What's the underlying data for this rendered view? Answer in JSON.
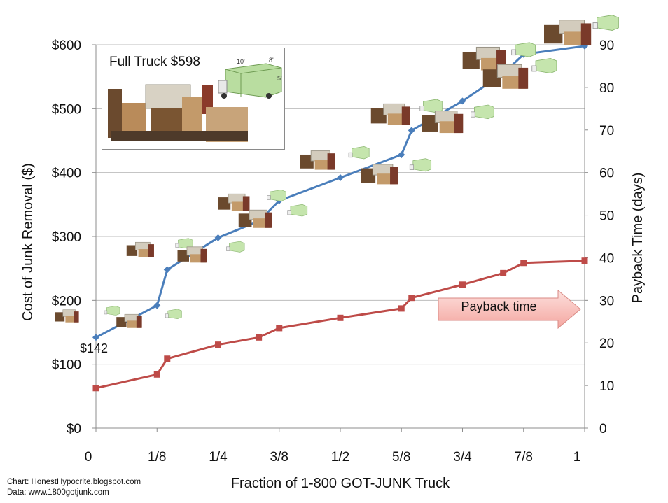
{
  "chart_data": {
    "type": "line",
    "x_tick_labels": [
      "0",
      "1/8",
      "1/4",
      "3/8",
      "1/2",
      "5/8",
      "3/4",
      "7/8",
      "1"
    ],
    "xlim": [
      0,
      1
    ],
    "xlabel": "Fraction of 1-800 GOT-JUNK Truck",
    "ylabel_left": "Cost of Junk Removal ($)",
    "ylabel_right": "Payback Time (days)",
    "ylim_left": [
      0,
      600
    ],
    "ylim_right": [
      0,
      90
    ],
    "y_tick_labels_left": [
      "$0",
      "$100",
      "$200",
      "$300",
      "$400",
      "$500",
      "$600"
    ],
    "y_tick_labels_right": [
      "0",
      "10",
      "20",
      "30",
      "40",
      "50",
      "60",
      "70",
      "80",
      "90"
    ],
    "grid": "horizontal",
    "series": [
      {
        "axis": "left",
        "color": "#4a7ebb",
        "marker": "diamond",
        "points": [
          [
            0.0,
            142
          ],
          [
            0.125,
            192
          ],
          [
            0.1458,
            248
          ],
          [
            0.25,
            298
          ],
          [
            0.3333,
            324
          ],
          [
            0.375,
            356
          ],
          [
            0.5,
            392
          ],
          [
            0.625,
            428
          ],
          [
            0.6458,
            466
          ],
          [
            0.75,
            512
          ],
          [
            0.8333,
            555
          ],
          [
            0.875,
            585
          ],
          [
            1.0,
            598
          ]
        ]
      },
      {
        "axis": "right",
        "color": "#be4b48",
        "marker": "square",
        "points": [
          [
            0.0,
            9.4
          ],
          [
            0.125,
            12.6
          ],
          [
            0.1458,
            16.3
          ],
          [
            0.25,
            19.6
          ],
          [
            0.3333,
            21.3
          ],
          [
            0.375,
            23.5
          ],
          [
            0.5,
            25.9
          ],
          [
            0.625,
            28.1
          ],
          [
            0.6458,
            30.6
          ],
          [
            0.75,
            33.7
          ],
          [
            0.8333,
            36.4
          ],
          [
            0.875,
            38.8
          ],
          [
            1.0,
            39.3
          ]
        ]
      }
    ],
    "annotations": {
      "start_label": "$142",
      "inset_title": "Full Truck $598",
      "truck_dims": [
        "10'",
        "8'",
        "5'"
      ],
      "callout": "Payback time"
    }
  },
  "credits": {
    "line1": "Chart: HonestHypocrite.blogspot.com",
    "line2": "Data: www.1800gotjunk.com"
  }
}
